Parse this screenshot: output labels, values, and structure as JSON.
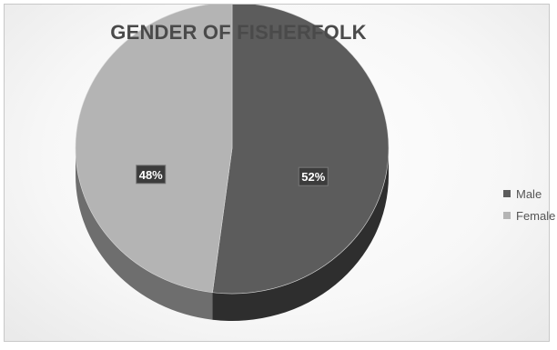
{
  "chart_data": {
    "type": "pie",
    "title": "GENDER OF FISHERFOLK",
    "categories": [
      "Male",
      "Female"
    ],
    "values": [
      52,
      48
    ],
    "data_labels": [
      "52%",
      "48%"
    ],
    "legend_position": "right",
    "style": "3d",
    "colors": {
      "Male": "#5c5c5c",
      "Male_side": "#2e2e2e",
      "Female": "#b4b4b4",
      "Female_side": "#6e6e6e",
      "label_box": "#3c3c3c",
      "label_text": "#ffffff"
    }
  }
}
